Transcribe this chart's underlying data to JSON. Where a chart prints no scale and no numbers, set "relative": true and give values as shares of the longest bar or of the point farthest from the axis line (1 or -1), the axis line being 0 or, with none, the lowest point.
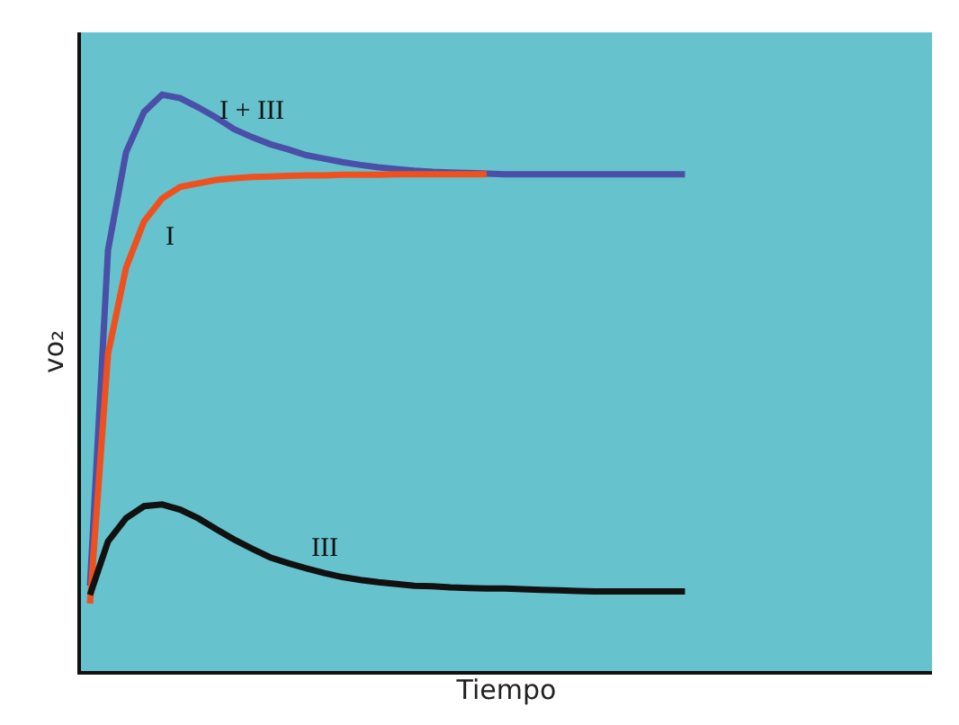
{
  "chart_data": {
    "type": "line",
    "relative": true,
    "xlabel": "Tiempo",
    "ylabel": "vo₂",
    "legend": false,
    "marker": "none",
    "line_style": "solid",
    "categories": [
      null,
      null,
      null,
      null,
      null,
      null,
      null,
      null,
      null,
      null,
      null,
      null,
      null,
      null,
      null,
      null,
      null,
      null,
      null,
      null,
      null,
      null,
      null,
      null,
      null,
      null,
      null,
      null,
      null,
      null,
      null,
      null,
      null,
      null,
      null,
      null,
      null,
      null,
      null,
      null,
      null,
      null,
      null,
      null,
      null,
      null,
      null
    ],
    "series": [
      {
        "name": "I + III",
        "color": "#4a4fa8",
        "values": [
          0.148,
          0.73,
          0.9,
          0.97,
          1.0,
          0.994,
          0.978,
          0.96,
          0.94,
          0.926,
          0.914,
          0.905,
          0.895,
          0.889,
          0.883,
          0.878,
          0.874,
          0.871,
          0.868,
          0.866,
          0.865,
          0.864,
          0.863,
          0.862,
          0.862,
          0.862,
          0.862,
          0.862,
          0.862,
          0.862,
          0.862,
          0.862,
          0.862,
          0.862,
          null,
          null,
          null,
          null,
          null,
          null,
          null,
          null,
          null,
          null,
          null,
          null,
          null
        ]
      },
      {
        "name": "I",
        "color": "#f0501e",
        "values": [
          0.117,
          0.55,
          0.7,
          0.78,
          0.82,
          0.84,
          0.846,
          0.852,
          0.855,
          0.857,
          0.858,
          0.859,
          0.86,
          0.86,
          0.861,
          0.861,
          0.861,
          0.862,
          0.862,
          0.862,
          0.862,
          0.862,
          0.862,
          null,
          null,
          null,
          null,
          null,
          null,
          null,
          null,
          null,
          null,
          null,
          null,
          null,
          null,
          null,
          null,
          null,
          null,
          null,
          null,
          null,
          null,
          null,
          null
        ]
      },
      {
        "name": "III",
        "color": "#111111",
        "values": [
          0.132,
          0.225,
          0.265,
          0.286,
          0.289,
          0.28,
          0.265,
          0.246,
          0.228,
          0.212,
          0.197,
          0.187,
          0.178,
          0.17,
          0.163,
          0.158,
          0.154,
          0.151,
          0.148,
          0.147,
          0.145,
          0.144,
          0.143,
          0.143,
          0.142,
          0.141,
          0.14,
          0.139,
          0.138,
          0.138,
          0.138,
          0.138,
          0.138,
          0.138,
          null,
          null,
          null,
          null,
          null,
          null,
          null,
          null,
          null,
          null,
          null,
          null,
          null
        ]
      }
    ]
  }
}
